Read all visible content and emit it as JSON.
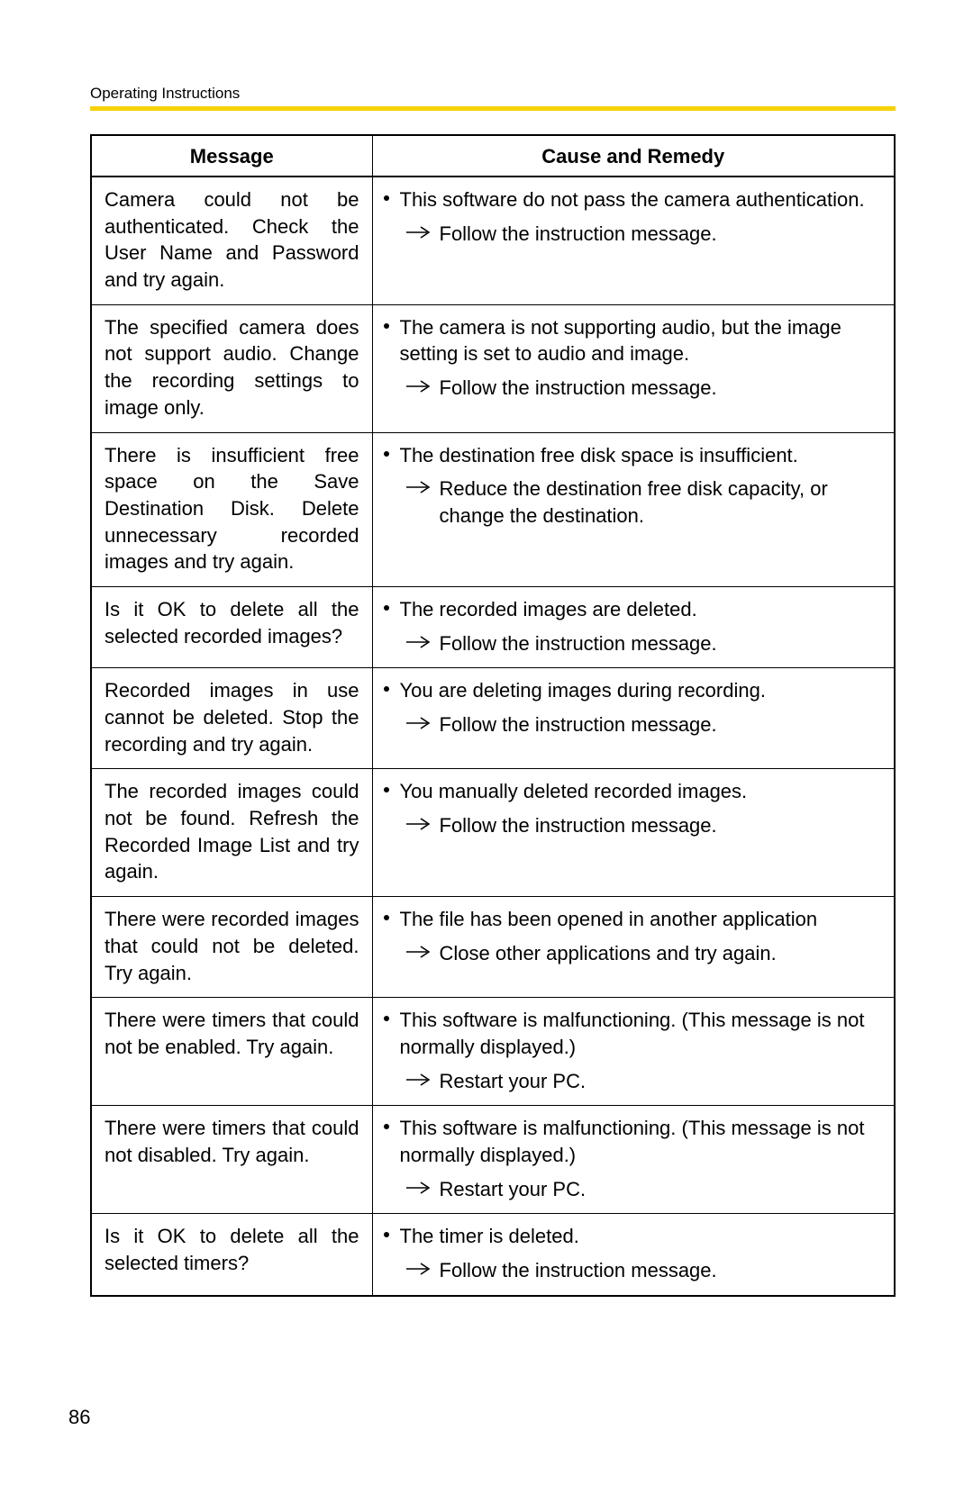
{
  "header": "Operating Instructions",
  "page_number": "86",
  "accent_color": "#f7d100",
  "table": {
    "columns": [
      "Message",
      "Cause and Remedy"
    ],
    "rows": [
      {
        "message": "Camera could not be authenticated. Check the User Name and Password and try again.",
        "causes": [
          {
            "cause": "This software do not pass the camera authentication.",
            "remedy": "Follow the instruction message."
          }
        ]
      },
      {
        "message": "The specified camera does not support audio. Change the recording settings to image only.",
        "causes": [
          {
            "cause": "The camera is not supporting audio, but the image setting is set to audio and image.",
            "remedy": "Follow the instruction message."
          }
        ]
      },
      {
        "message": "There is insufficient free space on the Save Destination Disk. Delete unnecessary recorded images and try again.",
        "causes": [
          {
            "cause": "The destination free disk space is insufficient.",
            "remedy": "Reduce the destination free disk capacity, or change the destination."
          }
        ]
      },
      {
        "message": "Is it OK to delete all the selected recorded images?",
        "causes": [
          {
            "cause": "The recorded images are deleted.",
            "remedy": "Follow the instruction message."
          }
        ]
      },
      {
        "message": "Recorded images in use cannot be deleted. Stop the recording and try again.",
        "causes": [
          {
            "cause": "You are deleting images during recording.",
            "remedy": "Follow the instruction message."
          }
        ]
      },
      {
        "message": "The recorded images could not be found. Refresh the Recorded Image List and try again.",
        "causes": [
          {
            "cause": "You manually deleted recorded images.",
            "remedy": "Follow the instruction message."
          }
        ]
      },
      {
        "message": "There were recorded images that could not be deleted. Try again.",
        "causes": [
          {
            "cause": "The file has been opened in another application",
            "remedy": "Close other applications and try again."
          }
        ]
      },
      {
        "message": "There were timers that could not be enabled. Try again.",
        "causes": [
          {
            "cause": "This software is malfunctioning. (This message is not normally displayed.)",
            "remedy": "Restart your PC."
          }
        ]
      },
      {
        "message": "There were timers that could not disabled. Try again.",
        "causes": [
          {
            "cause": "This software is malfunctioning. (This message is not normally displayed.)",
            "remedy": "Restart your PC."
          }
        ]
      },
      {
        "message": "Is it OK to delete all the selected timers?",
        "causes": [
          {
            "cause": "The timer is deleted.",
            "remedy": "Follow the instruction message."
          }
        ]
      }
    ]
  }
}
